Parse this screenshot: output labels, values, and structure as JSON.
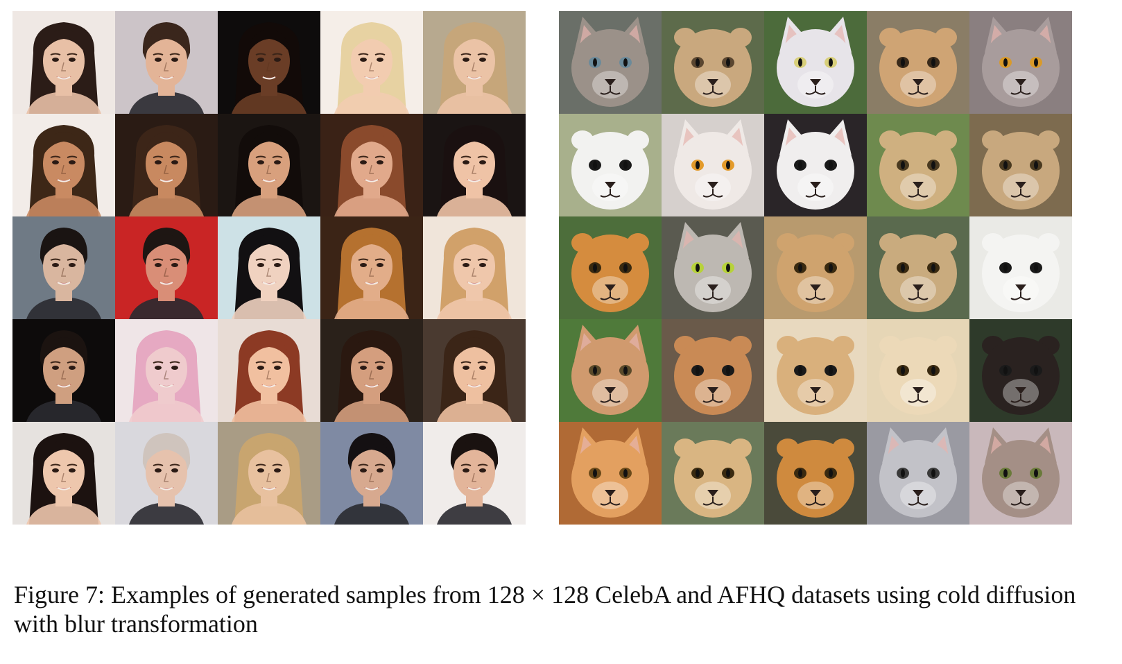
{
  "figure": {
    "caption": "Figure 7: Examples of generated samples from 128 × 128 CelebA and AFHQ datasets using cold diffusion with blur transformation"
  },
  "celeba_faces": [
    {
      "bg": "#efe8e4",
      "skin": "#e8c0a6",
      "hair": "#2b1c17",
      "hair_style": "long"
    },
    {
      "bg": "#ccc4c8",
      "skin": "#e3b497",
      "hair": "#3a261c",
      "hair_style": "short"
    },
    {
      "bg": "#0e0c0c",
      "skin": "#6a3d26",
      "hair": "#120a08",
      "hair_style": "long"
    },
    {
      "bg": "#f5eee8",
      "skin": "#f2ccb0",
      "hair": "#e7d2a2",
      "hair_style": "long"
    },
    {
      "bg": "#b7a98f",
      "skin": "#ebc3a6",
      "hair": "#c6a67a",
      "hair_style": "long"
    },
    {
      "bg": "#f2ece8",
      "skin": "#c98a62",
      "hair": "#3d2717",
      "hair_style": "long"
    },
    {
      "bg": "#2a1b14",
      "skin": "#c88960",
      "hair": "#3c2518",
      "hair_style": "long"
    },
    {
      "bg": "#1b1512",
      "skin": "#d8a07d",
      "hair": "#120c0a",
      "hair_style": "long"
    },
    {
      "bg": "#3a2216",
      "skin": "#e1a98b",
      "hair": "#8a4a2c",
      "hair_style": "long"
    },
    {
      "bg": "#1a1413",
      "skin": "#efc3a6",
      "hair": "#1a1010",
      "hair_style": "long"
    },
    {
      "bg": "#6f7a85",
      "skin": "#d9b69f",
      "hair": "#1a1412",
      "hair_style": "short"
    },
    {
      "bg": "#c92525",
      "skin": "#d98e77",
      "hair": "#1e1613",
      "hair_style": "short"
    },
    {
      "bg": "#cde1e6",
      "skin": "#f0d2c0",
      "hair": "#121012",
      "hair_style": "long"
    },
    {
      "bg": "#3b2416",
      "skin": "#e2ad89",
      "hair": "#b5712f",
      "hair_style": "long"
    },
    {
      "bg": "#f0e5da",
      "skin": "#efc7ab",
      "hair": "#d1a16a",
      "hair_style": "long"
    },
    {
      "bg": "#0d0b0b",
      "skin": "#cf9f80",
      "hair": "#1b1310",
      "hair_style": "short"
    },
    {
      "bg": "#efe5e7",
      "skin": "#efcbcd",
      "hair": "#e6a9c2",
      "hair_style": "long"
    },
    {
      "bg": "#e8dcd5",
      "skin": "#f1c0a0",
      "hair": "#8c3a24",
      "hair_style": "long"
    },
    {
      "bg": "#2a211a",
      "skin": "#d49e7e",
      "hair": "#2a1810",
      "hair_style": "long"
    },
    {
      "bg": "#4a3a30",
      "skin": "#eec0a0",
      "hair": "#3b2517",
      "hair_style": "long"
    },
    {
      "bg": "#e6e2df",
      "skin": "#eec7ad",
      "hair": "#1c1210",
      "hair_style": "long"
    },
    {
      "bg": "#d9d8dd",
      "skin": "#e6c2ad",
      "hair": "#cfc4bd",
      "hair_style": "short"
    },
    {
      "bg": "#a99c85",
      "skin": "#e8c19f",
      "hair": "#c8a56f",
      "hair_style": "long"
    },
    {
      "bg": "#7f8aa3",
      "skin": "#d7a98f",
      "hair": "#141012",
      "hair_style": "short"
    },
    {
      "bg": "#f0ecea",
      "skin": "#e3b59a",
      "hair": "#1a1210",
      "hair_style": "short"
    }
  ],
  "afhq_animals": [
    {
      "bg": "#6a6f68",
      "fur": "#9b9189",
      "ear": "pointed",
      "eye": "#6b8a9a"
    },
    {
      "bg": "#5d6b4b",
      "fur": "#c9a87e",
      "ear": "round",
      "eye": "#5a4630"
    },
    {
      "bg": "#4c6b3b",
      "fur": "#e7e4e9",
      "ear": "pointed",
      "eye": "#d8cf7a"
    },
    {
      "bg": "#8a7d66",
      "fur": "#cfa474",
      "ear": "round",
      "eye": "#3a2a1a"
    },
    {
      "bg": "#8a7f80",
      "fur": "#a89c9c",
      "ear": "pointed",
      "eye": "#d99a2a"
    },
    {
      "bg": "#a8b08c",
      "fur": "#f2f2f0",
      "ear": "round",
      "eye": "#1a1a1a"
    },
    {
      "bg": "#d6d0cd",
      "fur": "#efe9e6",
      "ear": "pointed",
      "eye": "#e39a2a"
    },
    {
      "bg": "#2a2528",
      "fur": "#f0eeee",
      "ear": "pointed",
      "eye": "#1a1a1a"
    },
    {
      "bg": "#6e8a4e",
      "fur": "#cfb080",
      "ear": "round",
      "eye": "#4a3a20"
    },
    {
      "bg": "#7d6b4f",
      "fur": "#c8a87e",
      "ear": "round",
      "eye": "#4a3a20"
    },
    {
      "bg": "#4d6e3b",
      "fur": "#d58c3e",
      "ear": "round",
      "eye": "#3a2a10"
    },
    {
      "bg": "#5a5a50",
      "fur": "#bdb8b2",
      "ear": "pointed",
      "eye": "#b7d23a"
    },
    {
      "bg": "#b89a6e",
      "fur": "#cfa36e",
      "ear": "round",
      "eye": "#3a2a10"
    },
    {
      "bg": "#5a6a4e",
      "fur": "#c9ab7e",
      "ear": "round",
      "eye": "#3a2a10"
    },
    {
      "bg": "#eaeae6",
      "fur": "#f4f4f2",
      "ear": "round",
      "eye": "#1a1a1a"
    },
    {
      "bg": "#4f7a3a",
      "fur": "#d09a6e",
      "ear": "pointed",
      "eye": "#5a4a2a"
    },
    {
      "bg": "#6a5a4a",
      "fur": "#c98a55",
      "ear": "round",
      "eye": "#1a1a1a"
    },
    {
      "bg": "#e8d9bf",
      "fur": "#d9b07c",
      "ear": "round",
      "eye": "#1a1a1a"
    },
    {
      "bg": "#e6d6b6",
      "fur": "#ecd9b8",
      "ear": "round",
      "eye": "#3a2a10"
    },
    {
      "bg": "#2e3a2a",
      "fur": "#2a2220",
      "ear": "round",
      "eye": "#1a1a1a"
    },
    {
      "bg": "#b06a35",
      "fur": "#e3a060",
      "ear": "pointed",
      "eye": "#6b4a1a"
    },
    {
      "bg": "#6a7a5a",
      "fur": "#d9b582",
      "ear": "round",
      "eye": "#3a2a10"
    },
    {
      "bg": "#4a4a3a",
      "fur": "#cf8a3e",
      "ear": "round",
      "eye": "#3a2a10"
    },
    {
      "bg": "#9a9aa2",
      "fur": "#c2c2c8",
      "ear": "pointed",
      "eye": "#3a3a3a"
    },
    {
      "bg": "#c9b8bb",
      "fur": "#a48f86",
      "ear": "pointed",
      "eye": "#6a7a3a"
    }
  ]
}
